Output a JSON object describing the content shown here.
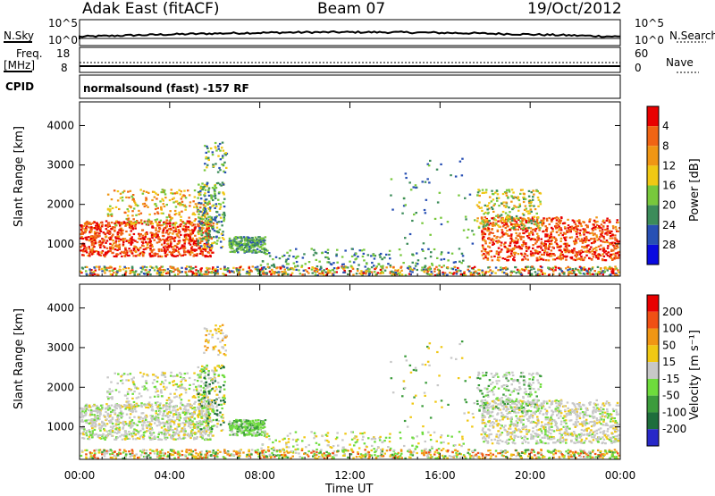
{
  "header": {
    "station": "Adak East (fitACF)",
    "beam": "Beam 07",
    "date": "19/Oct/2012"
  },
  "top_panels": {
    "nsky_label": "N.Sky",
    "nsky_ticks": [
      "10^5",
      "10^0"
    ],
    "nsearch_label": "N.Search",
    "nsearch_ticks": [
      "10^5",
      "10^0"
    ],
    "freq_label": "Freq.",
    "freq_unit": "[MHz]",
    "freq_ticks": [
      "18",
      "8"
    ],
    "nave_label": "Nave",
    "nave_ticks": [
      "60",
      "0"
    ],
    "cpid_label": "CPID",
    "cpid_text": "normalsound (fast) -157 RF"
  },
  "chart_data": [
    {
      "type": "heatmap",
      "name": "power",
      "ylabel": "Slant Range [km]",
      "xlabel": "",
      "yticks": [
        "1000",
        "2000",
        "3000",
        "4000"
      ],
      "ylim": [
        180,
        4600
      ],
      "xlim": [
        0,
        24
      ],
      "xticks": [
        "00:00",
        "04:00",
        "08:00",
        "12:00",
        "16:00",
        "20:00",
        "00:00"
      ],
      "colorbar_label": "Power [dB]",
      "colorbar_ticks": [
        "4",
        "8",
        "12",
        "16",
        "20",
        "24",
        "28"
      ],
      "colors": [
        "#0a0ae0",
        "#2850b4",
        "#3c8c5a",
        "#78c83c",
        "#f0c814",
        "#f09614",
        "#f06414",
        "#e80000"
      ]
    },
    {
      "type": "heatmap",
      "name": "velocity",
      "ylabel": "Slant Range [km]",
      "xlabel": "Time UT",
      "yticks": [
        "1000",
        "2000",
        "3000",
        "4000"
      ],
      "ylim": [
        180,
        4600
      ],
      "xlim": [
        0,
        24
      ],
      "xticks": [
        "00:00",
        "04:00",
        "08:00",
        "12:00",
        "16:00",
        "20:00",
        "00:00"
      ],
      "colorbar_label": "Velocity [m s⁻¹]",
      "colorbar_ticks": [
        "200",
        "100",
        "50",
        "15",
        "-15",
        "-50",
        "-100",
        "-200"
      ],
      "colors": [
        "#2828c8",
        "#1e6e3c",
        "#3c9c3c",
        "#6edc3c",
        "#c8c8c8",
        "#f0c814",
        "#f09614",
        "#f05014",
        "#e80000"
      ]
    }
  ]
}
